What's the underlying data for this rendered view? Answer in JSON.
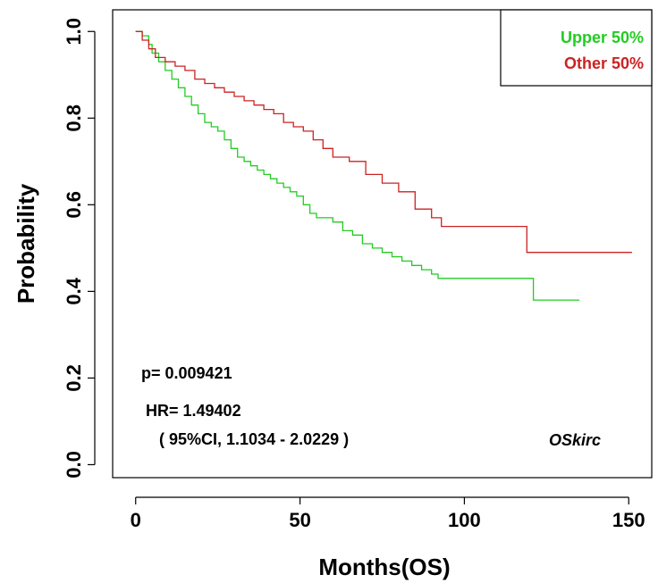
{
  "chart_data": {
    "type": "line",
    "step": true,
    "xlabel": "Months(OS)",
    "ylabel": "Probability",
    "xlim": [
      -7,
      157
    ],
    "ylim": [
      -0.03,
      1.05
    ],
    "x_ticks": [
      0,
      50,
      100,
      150
    ],
    "y_ticks": [
      0.0,
      0.2,
      0.4,
      0.6,
      0.8,
      1.0
    ],
    "x_tick_labels": [
      "0",
      "50",
      "100",
      "150"
    ],
    "y_tick_labels": [
      "0.0",
      "0.2",
      "0.4",
      "0.6",
      "0.8",
      "1.0"
    ],
    "legend_position": "top-right",
    "series": [
      {
        "name": "Upper 50%",
        "color": "#22cc22",
        "x": [
          0,
          2,
          4,
          5,
          7,
          9,
          11,
          13,
          15,
          17,
          19,
          21,
          23,
          25,
          27,
          29,
          31,
          33,
          35,
          37,
          39,
          41,
          43,
          45,
          47,
          49,
          51,
          53,
          55,
          60,
          63,
          66,
          69,
          72,
          75,
          78,
          81,
          84,
          87,
          90,
          92,
          120,
          121,
          135
        ],
        "y": [
          1.0,
          0.99,
          0.97,
          0.95,
          0.93,
          0.91,
          0.89,
          0.87,
          0.85,
          0.83,
          0.81,
          0.79,
          0.78,
          0.77,
          0.75,
          0.73,
          0.71,
          0.7,
          0.69,
          0.68,
          0.67,
          0.66,
          0.65,
          0.64,
          0.63,
          0.62,
          0.6,
          0.58,
          0.57,
          0.56,
          0.54,
          0.53,
          0.51,
          0.5,
          0.49,
          0.48,
          0.47,
          0.46,
          0.45,
          0.44,
          0.43,
          0.43,
          0.38,
          0.38
        ]
      },
      {
        "name": "Other  50%",
        "color": "#cc2222",
        "x": [
          0,
          2,
          4,
          6,
          9,
          12,
          15,
          18,
          21,
          24,
          27,
          30,
          33,
          36,
          39,
          42,
          45,
          48,
          51,
          54,
          57,
          60,
          65,
          70,
          75,
          80,
          85,
          90,
          93,
          118,
          119,
          151
        ],
        "y": [
          1.0,
          0.98,
          0.96,
          0.94,
          0.93,
          0.92,
          0.91,
          0.89,
          0.88,
          0.87,
          0.86,
          0.85,
          0.84,
          0.83,
          0.82,
          0.81,
          0.79,
          0.78,
          0.77,
          0.75,
          0.73,
          0.71,
          0.7,
          0.67,
          0.65,
          0.63,
          0.59,
          0.57,
          0.55,
          0.55,
          0.49,
          0.49
        ]
      }
    ]
  },
  "annotations": {
    "p_value": "p= 0.009421",
    "hr": "HR= 1.49402",
    "ci": "( 95%CI, 1.1034 - 2.0229 )",
    "dataset": "OSkirc"
  }
}
